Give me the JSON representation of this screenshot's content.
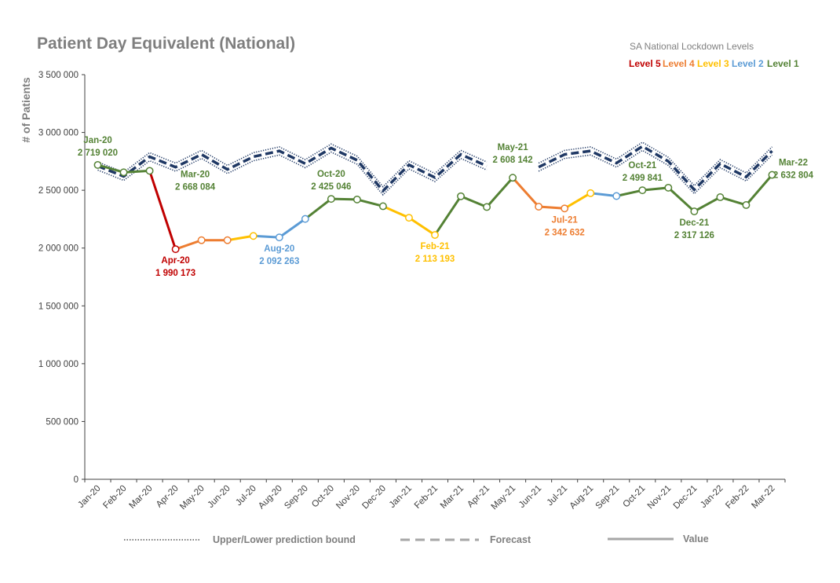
{
  "chart_data": {
    "type": "line",
    "title": "Patient Day Equivalent (National)",
    "ylabel": "# of Patients",
    "xlabel": "",
    "ylim": [
      0,
      3500000
    ],
    "yticks": [
      0,
      500000,
      1000000,
      1500000,
      2000000,
      2500000,
      3000000,
      3500000
    ],
    "ytick_labels": [
      "0",
      "500 000",
      "1 000 000",
      "1 500 000",
      "2 000 000",
      "2 500 000",
      "3 000 000",
      "3 500 000"
    ],
    "categories": [
      "Jan-20",
      "Feb-20",
      "Mar-20",
      "Apr-20",
      "May-20",
      "Jun-20",
      "Jul-20",
      "Aug-20",
      "Sep-20",
      "Oct-20",
      "Nov-20",
      "Dec-20",
      "Jan-21",
      "Feb-21",
      "Mar-21",
      "Apr-21",
      "May-21",
      "Jun-21",
      "Jul-21",
      "Aug-21",
      "Sep-21",
      "Oct-21",
      "Nov-21",
      "Dec-21",
      "Jan-22",
      "Feb-22",
      "Mar-22"
    ],
    "series": [
      {
        "name": "Value",
        "values": [
          2719020,
          2655000,
          2668084,
          1990173,
          2068000,
          2068000,
          2105000,
          2092263,
          2252000,
          2425046,
          2420000,
          2362000,
          2262000,
          2113193,
          2448000,
          2355000,
          2608142,
          2358000,
          2342632,
          2475000,
          2450000,
          2499841,
          2522000,
          2317126,
          2440000,
          2372000,
          2632804
        ],
        "levels": [
          1,
          1,
          1,
          5,
          4,
          4,
          3,
          2,
          2,
          1,
          1,
          1,
          3,
          3,
          1,
          1,
          1,
          4,
          4,
          3,
          2,
          1,
          1,
          1,
          1,
          1,
          1
        ]
      },
      {
        "name": "Forecast",
        "values": [
          2710000,
          2620000,
          2790000,
          2700000,
          2810000,
          2680000,
          2790000,
          2840000,
          2730000,
          2865000,
          2760000,
          2495000,
          2720000,
          2610000,
          2810000,
          2710000,
          null,
          2700000,
          2810000,
          2840000,
          2735000,
          2880000,
          2750000,
          2505000,
          2730000,
          2615000,
          2840000
        ]
      }
    ],
    "prediction_band": 35000,
    "level_colors": {
      "1": "#548235",
      "2": "#5b9bd5",
      "3": "#ffc000",
      "4": "#ed7d31",
      "5": "#c00000"
    },
    "annotations": [
      {
        "index": 0,
        "name": "Jan-20",
        "value": "2 719 020",
        "level": 1,
        "pos": "above"
      },
      {
        "index": 2,
        "name": "Mar-20",
        "value": "2 668 084",
        "level": 1,
        "pos": "below-right"
      },
      {
        "index": 3,
        "name": "Apr-20",
        "value": "1 990 173",
        "level": 5,
        "pos": "below"
      },
      {
        "index": 7,
        "name": "Aug-20",
        "value": "2 092 263",
        "level": 2,
        "pos": "below"
      },
      {
        "index": 9,
        "name": "Oct-20",
        "value": "2 425 046",
        "level": 1,
        "pos": "above"
      },
      {
        "index": 13,
        "name": "Feb-21",
        "value": "2 113 193",
        "level": 3,
        "pos": "below"
      },
      {
        "index": 16,
        "name": "May-21",
        "value": "2 608 142",
        "level": 1,
        "pos": "above-high"
      },
      {
        "index": 18,
        "name": "Jul-21",
        "value": "2 342 632",
        "level": 4,
        "pos": "below"
      },
      {
        "index": 21,
        "name": "Oct-21",
        "value": "2 499 841",
        "level": 1,
        "pos": "above"
      },
      {
        "index": 23,
        "name": "Dec-21",
        "value": "2 317 126",
        "level": 1,
        "pos": "below"
      },
      {
        "index": 26,
        "name": "Mar-22",
        "value": "2 632 804",
        "level": 1,
        "pos": "right"
      }
    ]
  },
  "legend": {
    "title": "SA National Lockdown Levels",
    "levels": [
      {
        "label": "Level 5",
        "color": "#c00000"
      },
      {
        "label": "Level 4",
        "color": "#ed7d31"
      },
      {
        "label": "Level 3",
        "color": "#ffc000"
      },
      {
        "label": "Level 2",
        "color": "#5b9bd5"
      },
      {
        "label": "Level 1",
        "color": "#548235"
      }
    ]
  },
  "bottom_legend": {
    "bound": "Upper/Lower prediction bound",
    "forecast": "Forecast",
    "value": "Value"
  },
  "colors": {
    "forecast": "#1f3864",
    "axis": "#404040",
    "grey": "#a6a6a6"
  }
}
